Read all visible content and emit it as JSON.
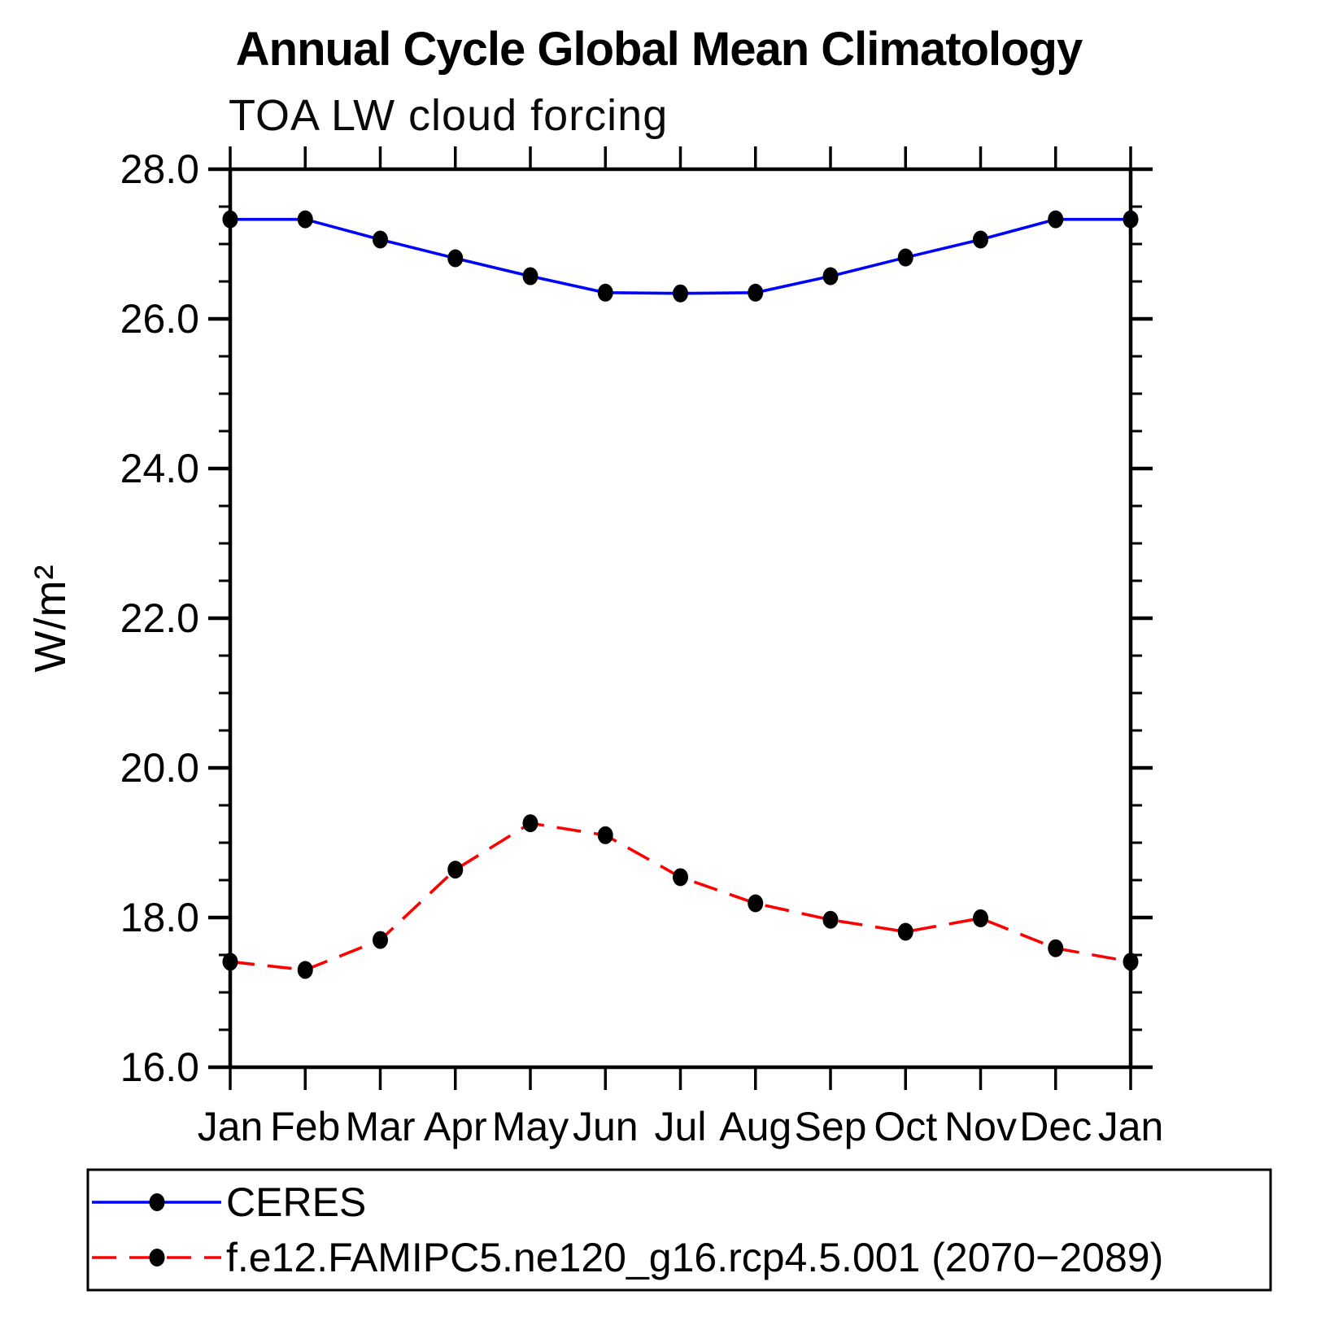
{
  "chart_data": {
    "type": "line",
    "title": "Annual Cycle Global Mean Climatology",
    "subtitle": "TOA LW cloud forcing",
    "xlabel": "",
    "ylabel": "W/m²",
    "ylim": [
      16.0,
      28.0
    ],
    "ymajor_step": 2.0,
    "yminor_step": 0.5,
    "grid": false,
    "frame": "box-with-outward-ticks",
    "categories": [
      "Jan",
      "Feb",
      "Mar",
      "Apr",
      "May",
      "Jun",
      "Jul",
      "Aug",
      "Sep",
      "Oct",
      "Nov",
      "Dec",
      "Jan"
    ],
    "ytick_labels": [
      "16.0",
      "18.0",
      "20.0",
      "22.0",
      "24.0",
      "26.0",
      "28.0"
    ],
    "marker_color": "#000000",
    "series": [
      {
        "id": "ceres",
        "name": "CERES",
        "color": "#0000ff",
        "line_style": "solid",
        "marker": "filled-circle",
        "values": [
          27.33,
          27.33,
          27.06,
          26.81,
          26.57,
          26.35,
          26.34,
          26.35,
          26.57,
          26.82,
          27.06,
          27.33,
          27.33
        ]
      },
      {
        "id": "model",
        "name": "f.e12.FAMIPC5.ne120_g16.rcp4.5.001 (2070−2089)",
        "color": "#ff0000",
        "line_style": "dashed",
        "marker": "filled-circle",
        "values": [
          17.41,
          17.3,
          17.7,
          18.64,
          19.26,
          19.1,
          18.54,
          18.19,
          17.97,
          17.81,
          17.99,
          17.59,
          17.41
        ]
      }
    ],
    "legend": {
      "position": "bottom-left-box"
    }
  }
}
